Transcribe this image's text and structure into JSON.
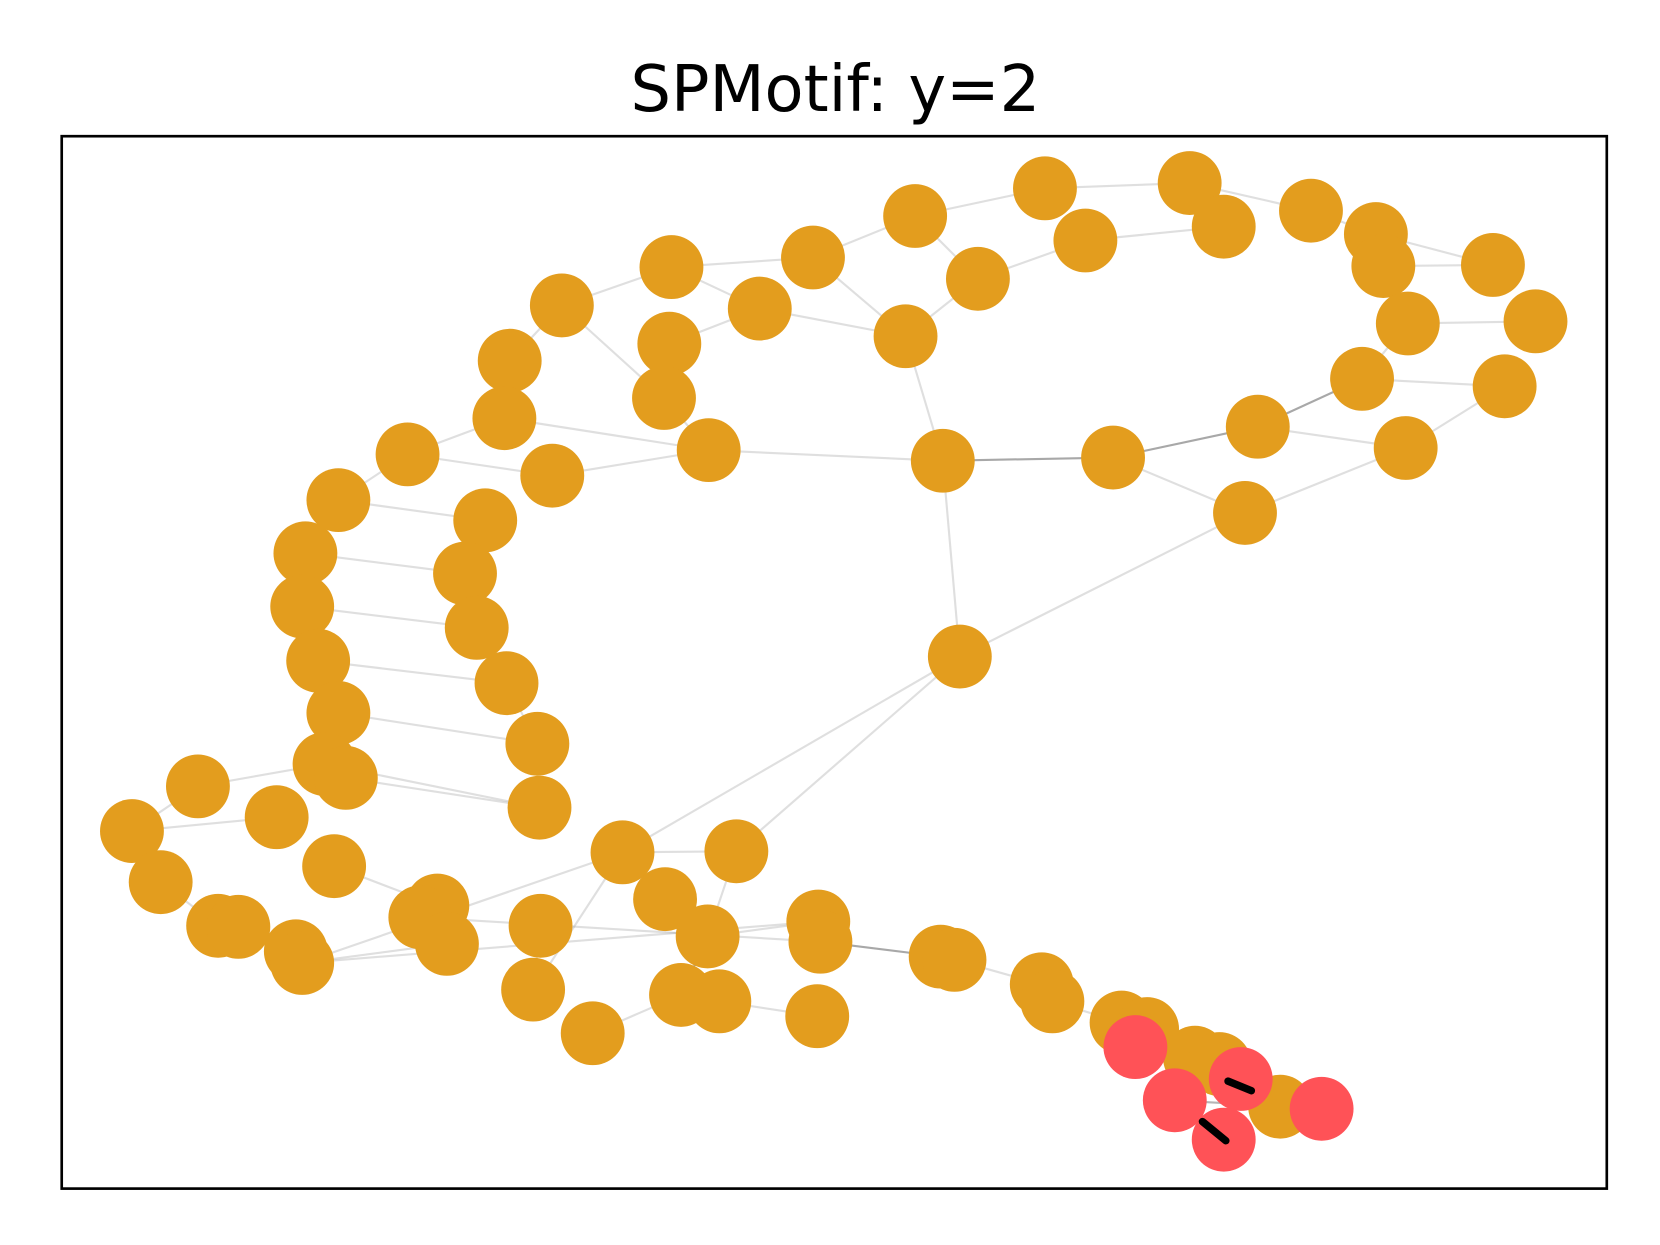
{
  "title": "SPMotif: y=2"
}
